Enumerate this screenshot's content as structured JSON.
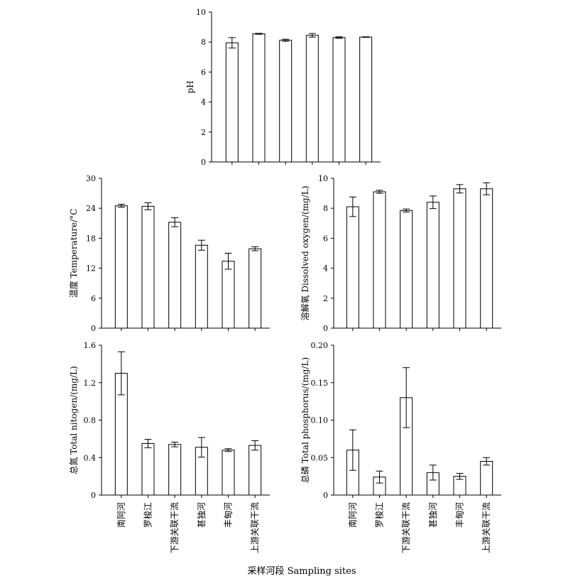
{
  "figure": {
    "xlabel": "采样河段  Sampling sites",
    "categories": [
      "南阿河",
      "罗梭江",
      "下游关联干流",
      "甚独河",
      "丰甸河",
      "上游关联干流"
    ]
  },
  "chart_data": [
    {
      "id": "ph",
      "type": "bar",
      "title": "",
      "ylabel": "pH",
      "ylim": [
        0,
        10
      ],
      "yticks": [
        0,
        2,
        4,
        6,
        8,
        10
      ],
      "categories": [
        "南阿河",
        "罗梭江",
        "下游关联干流",
        "甚独河",
        "丰甸河",
        "上游关联干流"
      ],
      "values": [
        7.95,
        8.55,
        8.12,
        8.45,
        8.3,
        8.33
      ],
      "errors": [
        0.35,
        0.03,
        0.07,
        0.12,
        0.05,
        0.02
      ],
      "show_category_labels": false
    },
    {
      "id": "temperature",
      "type": "bar",
      "title": "",
      "ylabel": "温度 Temperature/°C",
      "ylim": [
        0,
        30
      ],
      "yticks": [
        0,
        6,
        12,
        18,
        24,
        30
      ],
      "categories": [
        "南阿河",
        "罗梭江",
        "下游关联干流",
        "甚独河",
        "丰甸河",
        "上游关联干流"
      ],
      "values": [
        24.5,
        24.4,
        21.2,
        16.6,
        13.4,
        15.9
      ],
      "errors": [
        0.3,
        0.7,
        0.9,
        1.0,
        1.6,
        0.4
      ],
      "show_category_labels": false
    },
    {
      "id": "dissolved_oxygen",
      "type": "bar",
      "title": "",
      "ylabel": "溶解氧 Dissolved oxygen/(mg/L)",
      "ylim": [
        0,
        10
      ],
      "yticks": [
        0,
        2,
        4,
        6,
        8,
        10
      ],
      "categories": [
        "南阿河",
        "罗梭江",
        "下游关联干流",
        "甚独河",
        "丰甸河",
        "上游关联干流"
      ],
      "values": [
        8.1,
        9.1,
        7.85,
        8.4,
        9.3,
        9.3
      ],
      "errors": [
        0.65,
        0.1,
        0.1,
        0.42,
        0.28,
        0.4
      ],
      "show_category_labels": false
    },
    {
      "id": "total_nitrogen",
      "type": "bar",
      "title": "",
      "ylabel": "总氮 Total nitogen/(mg/L)",
      "ylim": [
        0,
        1.6
      ],
      "yticks": [
        0,
        0.4,
        0.8,
        1.2,
        1.6
      ],
      "categories": [
        "南阿河",
        "罗梭江",
        "下游关联干流",
        "甚独河",
        "丰甸河",
        "上游关联干流"
      ],
      "values": [
        1.3,
        0.55,
        0.54,
        0.51,
        0.48,
        0.53
      ],
      "errors": [
        0.23,
        0.045,
        0.025,
        0.105,
        0.015,
        0.05
      ],
      "show_category_labels": true
    },
    {
      "id": "total_phosphorus",
      "type": "bar",
      "title": "",
      "ylabel": "总磷 Total phosphorus/(mg/L)",
      "ylim": [
        0,
        0.2
      ],
      "yticks": [
        0,
        0.05,
        0.1,
        0.15,
        0.2
      ],
      "ytick_labels": [
        "0",
        "0.05",
        "0.10",
        "0.15",
        "0.20"
      ],
      "categories": [
        "南阿河",
        "罗梭江",
        "下游关联干流",
        "甚独河",
        "丰甸河",
        "上游关联干流"
      ],
      "values": [
        0.06,
        0.024,
        0.13,
        0.03,
        0.025,
        0.045
      ],
      "errors": [
        0.027,
        0.008,
        0.04,
        0.01,
        0.004,
        0.005
      ],
      "show_category_labels": true
    }
  ]
}
